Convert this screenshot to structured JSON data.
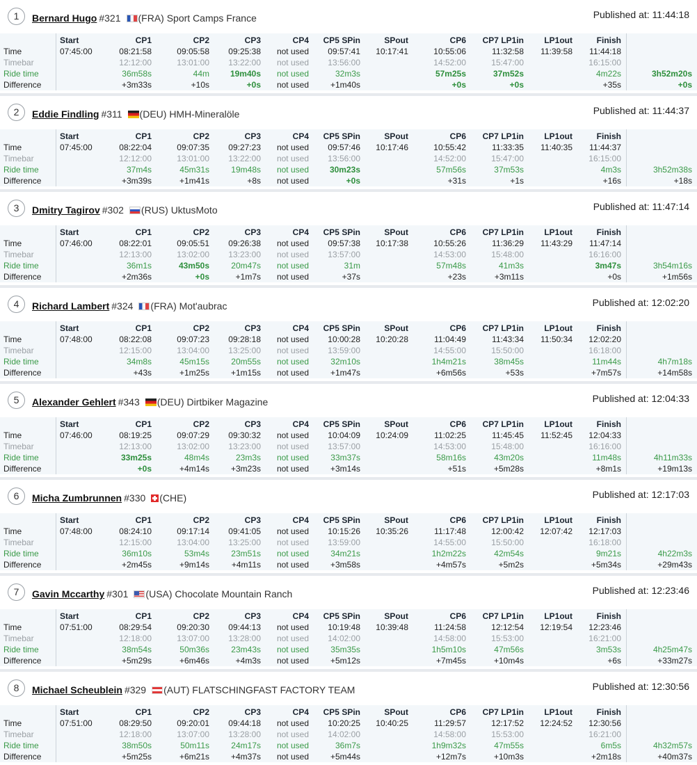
{
  "labels": {
    "published_prefix": "Published at:",
    "row_time": "Time",
    "row_timebar": "Timebar",
    "row_ride": "Ride time",
    "row_diff": "Difference"
  },
  "checkpoints": [
    "Start",
    "CP1",
    "CP2",
    "CP3",
    "CP4",
    "CP5 SPin",
    "SPout",
    "CP6",
    "CP7 LP1in",
    "LP1out",
    "Finish"
  ],
  "riders": [
    {
      "rank": "1",
      "name": "Bernard Hugo",
      "number": "#321",
      "flag": "fra",
      "team": "(FRA) Sport Camps France",
      "published": "11:44:18",
      "time": [
        "07:45:00",
        "08:21:58",
        "09:05:58",
        "09:25:38",
        "not used",
        "09:57:41",
        "10:17:41",
        "10:55:06",
        "11:32:58",
        "11:39:58",
        "11:44:18"
      ],
      "timebar": [
        "",
        "12:12:00",
        "13:01:00",
        "13:22:00",
        "not used",
        "13:56:00",
        "",
        "14:52:00",
        "15:47:00",
        "",
        "16:15:00"
      ],
      "ride": [
        "",
        "36m58s",
        "44m",
        "19m40s",
        "not used",
        "32m3s",
        "",
        "57m25s",
        "37m52s",
        "",
        "4m22s"
      ],
      "diff": [
        "",
        "+3m33s",
        "+10s",
        "+0s",
        "not used",
        "+1m40s",
        "",
        "+0s",
        "+0s",
        "",
        "+35s"
      ],
      "total_ride": "3h52m20s",
      "total_diff": "+0s",
      "best_ride": [
        3,
        7,
        8
      ],
      "best_diff": [
        3,
        7,
        8
      ],
      "best_total": true
    },
    {
      "rank": "2",
      "name": "Eddie Findling",
      "number": "#311",
      "flag": "deu",
      "team": "(DEU) HMH-Mineralöle",
      "published": "11:44:37",
      "time": [
        "07:45:00",
        "08:22:04",
        "09:07:35",
        "09:27:23",
        "not used",
        "09:57:46",
        "10:17:46",
        "10:55:42",
        "11:33:35",
        "11:40:35",
        "11:44:37"
      ],
      "timebar": [
        "",
        "12:12:00",
        "13:01:00",
        "13:22:00",
        "not used",
        "13:56:00",
        "",
        "14:52:00",
        "15:47:00",
        "",
        "16:15:00"
      ],
      "ride": [
        "",
        "37m4s",
        "45m31s",
        "19m48s",
        "not used",
        "30m23s",
        "",
        "57m56s",
        "37m53s",
        "",
        "4m3s"
      ],
      "diff": [
        "",
        "+3m39s",
        "+1m41s",
        "+8s",
        "not used",
        "+0s",
        "",
        "+31s",
        "+1s",
        "",
        "+16s"
      ],
      "total_ride": "3h52m38s",
      "total_diff": "+18s",
      "best_ride": [
        5
      ],
      "best_diff": [
        5
      ],
      "best_total": false
    },
    {
      "rank": "3",
      "name": "Dmitry Tagirov",
      "number": "#302",
      "flag": "rus",
      "team": "(RUS) UktusMoto",
      "published": "11:47:14",
      "time": [
        "07:46:00",
        "08:22:01",
        "09:05:51",
        "09:26:38",
        "not used",
        "09:57:38",
        "10:17:38",
        "10:55:26",
        "11:36:29",
        "11:43:29",
        "11:47:14"
      ],
      "timebar": [
        "",
        "12:13:00",
        "13:02:00",
        "13:23:00",
        "not used",
        "13:57:00",
        "",
        "14:53:00",
        "15:48:00",
        "",
        "16:16:00"
      ],
      "ride": [
        "",
        "36m1s",
        "43m50s",
        "20m47s",
        "not used",
        "31m",
        "",
        "57m48s",
        "41m3s",
        "",
        "3m47s"
      ],
      "diff": [
        "",
        "+2m36s",
        "+0s",
        "+1m7s",
        "not used",
        "+37s",
        "",
        "+23s",
        "+3m11s",
        "",
        "+0s"
      ],
      "total_ride": "3h54m16s",
      "total_diff": "+1m56s",
      "best_ride": [
        2,
        10
      ],
      "best_diff": [
        2
      ],
      "best_total": false
    },
    {
      "rank": "4",
      "name": "Richard Lambert",
      "number": "#324",
      "flag": "fra",
      "team": "(FRA) Mot'aubrac",
      "published": "12:02:20",
      "time": [
        "07:48:00",
        "08:22:08",
        "09:07:23",
        "09:28:18",
        "not used",
        "10:00:28",
        "10:20:28",
        "11:04:49",
        "11:43:34",
        "11:50:34",
        "12:02:20"
      ],
      "timebar": [
        "",
        "12:15:00",
        "13:04:00",
        "13:25:00",
        "not used",
        "13:59:00",
        "",
        "14:55:00",
        "15:50:00",
        "",
        "16:18:00"
      ],
      "ride": [
        "",
        "34m8s",
        "45m15s",
        "20m55s",
        "not used",
        "32m10s",
        "",
        "1h4m21s",
        "38m45s",
        "",
        "11m44s"
      ],
      "diff": [
        "",
        "+43s",
        "+1m25s",
        "+1m15s",
        "not used",
        "+1m47s",
        "",
        "+6m56s",
        "+53s",
        "",
        "+7m57s"
      ],
      "total_ride": "4h7m18s",
      "total_diff": "+14m58s",
      "best_ride": [],
      "best_diff": [],
      "best_total": false
    },
    {
      "rank": "5",
      "name": "Alexander Gehlert",
      "number": "#343",
      "flag": "deu",
      "team": "(DEU) Dirtbiker Magazine",
      "published": "12:04:33",
      "time": [
        "07:46:00",
        "08:19:25",
        "09:07:29",
        "09:30:32",
        "not used",
        "10:04:09",
        "10:24:09",
        "11:02:25",
        "11:45:45",
        "11:52:45",
        "12:04:33"
      ],
      "timebar": [
        "",
        "12:13:00",
        "13:02:00",
        "13:23:00",
        "not used",
        "13:57:00",
        "",
        "14:53:00",
        "15:48:00",
        "",
        "16:16:00"
      ],
      "ride": [
        "",
        "33m25s",
        "48m4s",
        "23m3s",
        "not used",
        "33m37s",
        "",
        "58m16s",
        "43m20s",
        "",
        "11m48s"
      ],
      "diff": [
        "",
        "+0s",
        "+4m14s",
        "+3m23s",
        "not used",
        "+3m14s",
        "",
        "+51s",
        "+5m28s",
        "",
        "+8m1s"
      ],
      "total_ride": "4h11m33s",
      "total_diff": "+19m13s",
      "best_ride": [
        1
      ],
      "best_diff": [
        1
      ],
      "best_total": false
    },
    {
      "rank": "6",
      "name": "Micha Zumbrunnen",
      "number": "#330",
      "flag": "che",
      "team": "(CHE)",
      "published": "12:17:03",
      "time": [
        "07:48:00",
        "08:24:10",
        "09:17:14",
        "09:41:05",
        "not used",
        "10:15:26",
        "10:35:26",
        "11:17:48",
        "12:00:42",
        "12:07:42",
        "12:17:03"
      ],
      "timebar": [
        "",
        "12:15:00",
        "13:04:00",
        "13:25:00",
        "not used",
        "13:59:00",
        "",
        "14:55:00",
        "15:50:00",
        "",
        "16:18:00"
      ],
      "ride": [
        "",
        "36m10s",
        "53m4s",
        "23m51s",
        "not used",
        "34m21s",
        "",
        "1h2m22s",
        "42m54s",
        "",
        "9m21s"
      ],
      "diff": [
        "",
        "+2m45s",
        "+9m14s",
        "+4m11s",
        "not used",
        "+3m58s",
        "",
        "+4m57s",
        "+5m2s",
        "",
        "+5m34s"
      ],
      "total_ride": "4h22m3s",
      "total_diff": "+29m43s",
      "best_ride": [],
      "best_diff": [],
      "best_total": false
    },
    {
      "rank": "7",
      "name": "Gavin Mccarthy",
      "number": "#301",
      "flag": "usa",
      "team": "(USA) Chocolate Mountain Ranch",
      "published": "12:23:46",
      "time": [
        "07:51:00",
        "08:29:54",
        "09:20:30",
        "09:44:13",
        "not used",
        "10:19:48",
        "10:39:48",
        "11:24:58",
        "12:12:54",
        "12:19:54",
        "12:23:46"
      ],
      "timebar": [
        "",
        "12:18:00",
        "13:07:00",
        "13:28:00",
        "not used",
        "14:02:00",
        "",
        "14:58:00",
        "15:53:00",
        "",
        "16:21:00"
      ],
      "ride": [
        "",
        "38m54s",
        "50m36s",
        "23m43s",
        "not used",
        "35m35s",
        "",
        "1h5m10s",
        "47m56s",
        "",
        "3m53s"
      ],
      "diff": [
        "",
        "+5m29s",
        "+6m46s",
        "+4m3s",
        "not used",
        "+5m12s",
        "",
        "+7m45s",
        "+10m4s",
        "",
        "+6s"
      ],
      "total_ride": "4h25m47s",
      "total_diff": "+33m27s",
      "best_ride": [],
      "best_diff": [],
      "best_total": false
    },
    {
      "rank": "8",
      "name": "Michael Scheublein",
      "number": "#329",
      "flag": "aut",
      "team": "(AUT) FLATSCHINGFAST FACTORY TEAM",
      "published": "12:30:56",
      "time": [
        "07:51:00",
        "08:29:50",
        "09:20:01",
        "09:44:18",
        "not used",
        "10:20:25",
        "10:40:25",
        "11:29:57",
        "12:17:52",
        "12:24:52",
        "12:30:56"
      ],
      "timebar": [
        "",
        "12:18:00",
        "13:07:00",
        "13:28:00",
        "not used",
        "14:02:00",
        "",
        "14:58:00",
        "15:53:00",
        "",
        "16:21:00"
      ],
      "ride": [
        "",
        "38m50s",
        "50m11s",
        "24m17s",
        "not used",
        "36m7s",
        "",
        "1h9m32s",
        "47m55s",
        "",
        "6m5s"
      ],
      "diff": [
        "",
        "+5m25s",
        "+6m21s",
        "+4m37s",
        "not used",
        "+5m44s",
        "",
        "+12m7s",
        "+10m3s",
        "",
        "+2m18s"
      ],
      "total_ride": "4h32m57s",
      "total_diff": "+40m37s",
      "best_ride": [],
      "best_diff": [],
      "best_total": false
    }
  ]
}
